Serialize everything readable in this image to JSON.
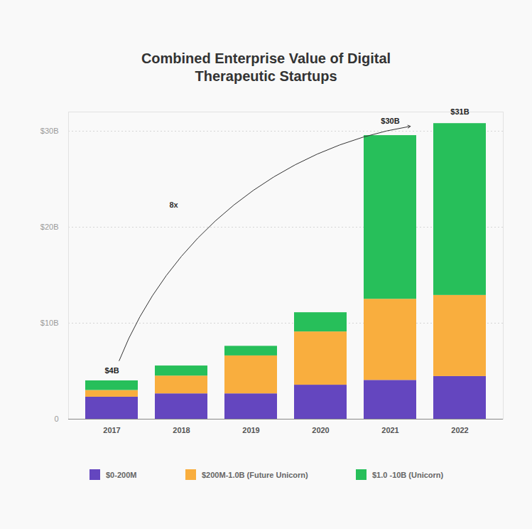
{
  "chart_data": {
    "type": "bar",
    "title": "Combined Enterprise Value of Digital Therapeutic Startups",
    "categories": [
      "2017",
      "2018",
      "2019",
      "2020",
      "2021",
      "2022"
    ],
    "series": [
      {
        "name": "$0-200M",
        "color": "#6446bf",
        "values": [
          2.3,
          2.65,
          2.65,
          3.55,
          4.05,
          4.45
        ]
      },
      {
        "name": "$200M-1.0B (Future Unicorn)",
        "color": "#f9ae3e",
        "values": [
          0.7,
          1.85,
          3.95,
          5.55,
          8.45,
          8.45
        ]
      },
      {
        "name": "$1.0 -10B (Unicorn)",
        "color": "#27bf5a",
        "values": [
          1.0,
          1.05,
          1.0,
          2.0,
          17.05,
          17.9
        ]
      }
    ],
    "stacked": true,
    "ylim": [
      0,
      32
    ],
    "yticks": [
      0,
      {
        "value": 10,
        "label": "$10B"
      },
      {
        "value": 20,
        "label": "$20B"
      },
      {
        "value": 30,
        "label": "$30B"
      }
    ],
    "grid": true,
    "legend": "bottom",
    "annotations": [
      {
        "text": "$4B",
        "x": "2017",
        "y": 4
      },
      {
        "text": "$30B",
        "x": "2021",
        "y": 30
      },
      {
        "text": "$31B",
        "x": "2022",
        "y": 31
      },
      {
        "text": "8x",
        "from": "2017",
        "to": "2022"
      }
    ]
  }
}
